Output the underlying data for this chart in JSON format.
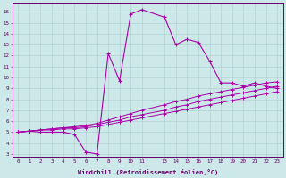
{
  "xlabel": "Windchill (Refroidissement éolien,°C)",
  "line_color": "#aa00aa",
  "bg_color": "#cce8e8",
  "xlim": [
    -0.5,
    23.5
  ],
  "ylim": [
    2.8,
    16.8
  ],
  "xticks": [
    0,
    1,
    2,
    3,
    4,
    5,
    6,
    7,
    8,
    9,
    10,
    11,
    13,
    14,
    15,
    16,
    17,
    18,
    19,
    20,
    21,
    22,
    23
  ],
  "yticks": [
    3,
    4,
    5,
    6,
    7,
    8,
    9,
    10,
    11,
    12,
    13,
    14,
    15,
    16
  ],
  "line1": [
    [
      0,
      5
    ],
    [
      1,
      5.1
    ],
    [
      2,
      5.2
    ],
    [
      3,
      5.2
    ],
    [
      4,
      5.3
    ],
    [
      5,
      5.3
    ],
    [
      6,
      5.4
    ],
    [
      7,
      5.5
    ],
    [
      8,
      5.7
    ],
    [
      9,
      5.9
    ],
    [
      10,
      6.1
    ],
    [
      11,
      6.3
    ],
    [
      13,
      6.7
    ],
    [
      14,
      6.9
    ],
    [
      15,
      7.1
    ],
    [
      16,
      7.3
    ],
    [
      17,
      7.5
    ],
    [
      18,
      7.7
    ],
    [
      19,
      7.9
    ],
    [
      20,
      8.1
    ],
    [
      21,
      8.3
    ],
    [
      22,
      8.5
    ],
    [
      23,
      8.7
    ]
  ],
  "line2": [
    [
      0,
      5
    ],
    [
      1,
      5.1
    ],
    [
      2,
      5.2
    ],
    [
      3,
      5.3
    ],
    [
      4,
      5.4
    ],
    [
      5,
      5.4
    ],
    [
      6,
      5.5
    ],
    [
      7,
      5.7
    ],
    [
      8,
      5.9
    ],
    [
      9,
      6.1
    ],
    [
      10,
      6.4
    ],
    [
      11,
      6.6
    ],
    [
      13,
      7.0
    ],
    [
      14,
      7.3
    ],
    [
      15,
      7.5
    ],
    [
      16,
      7.8
    ],
    [
      17,
      8.0
    ],
    [
      18,
      8.2
    ],
    [
      19,
      8.4
    ],
    [
      20,
      8.6
    ],
    [
      21,
      8.8
    ],
    [
      22,
      9.0
    ],
    [
      23,
      9.2
    ]
  ],
  "line3": [
    [
      0,
      5
    ],
    [
      1,
      5.1
    ],
    [
      2,
      5.2
    ],
    [
      3,
      5.3
    ],
    [
      4,
      5.4
    ],
    [
      5,
      5.5
    ],
    [
      6,
      5.6
    ],
    [
      7,
      5.8
    ],
    [
      8,
      6.1
    ],
    [
      9,
      6.4
    ],
    [
      10,
      6.7
    ],
    [
      11,
      7.0
    ],
    [
      13,
      7.5
    ],
    [
      14,
      7.8
    ],
    [
      15,
      8.0
    ],
    [
      16,
      8.3
    ],
    [
      17,
      8.5
    ],
    [
      18,
      8.7
    ],
    [
      19,
      8.9
    ],
    [
      20,
      9.1
    ],
    [
      21,
      9.3
    ],
    [
      22,
      9.5
    ],
    [
      23,
      9.6
    ]
  ],
  "main_series": [
    [
      0,
      5
    ],
    [
      1,
      5.1
    ],
    [
      2,
      5.0
    ],
    [
      3,
      5.0
    ],
    [
      4,
      5.0
    ],
    [
      5,
      4.8
    ],
    [
      6,
      3.2
    ],
    [
      7,
      3.0
    ],
    [
      8,
      12.2
    ],
    [
      9,
      9.7
    ],
    [
      10,
      15.8
    ],
    [
      11,
      16.2
    ],
    [
      13,
      15.5
    ],
    [
      14,
      13.0
    ],
    [
      15,
      13.5
    ],
    [
      16,
      13.2
    ],
    [
      17,
      11.5
    ],
    [
      18,
      9.5
    ],
    [
      19,
      9.5
    ],
    [
      20,
      9.2
    ],
    [
      21,
      9.5
    ],
    [
      22,
      9.2
    ],
    [
      23,
      9.0
    ]
  ]
}
